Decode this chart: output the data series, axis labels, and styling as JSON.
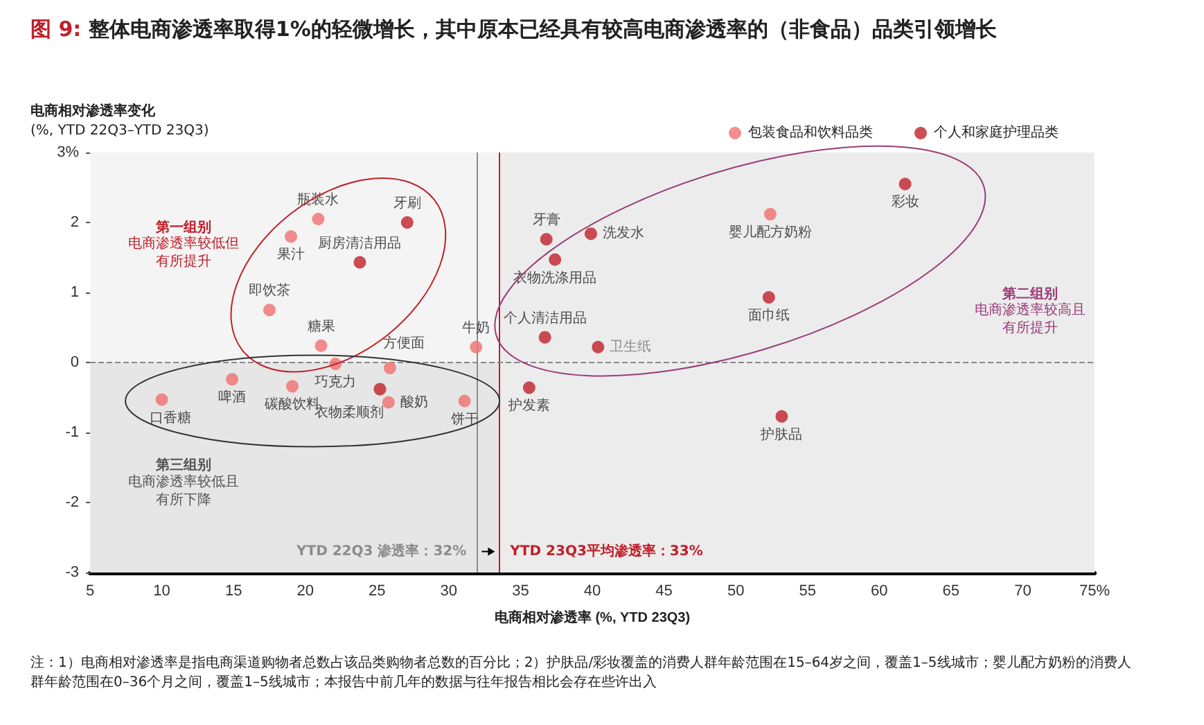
{
  "chart_data": {
    "type": "scatter",
    "title": "图 9: 整体电商渗透率取得1%的轻微增长，其中原本已经具有较高电商渗透率的（非食品）品类引领增长",
    "xlabel": "电商相对渗透率 (%, YTD 23Q3)",
    "ylabel": "电商相对渗透率变化\n(%, YTD 22Q3–YTD 23Q3)",
    "series": [
      {
        "name": "包装食品和饮料品类",
        "color": "#f07070",
        "x": [
          20.9,
          19.0,
          17.5,
          21.1,
          31.9,
          22.1,
          25.9,
          14.9,
          19.1,
          10.0,
          25.8,
          31.1,
          52.4
        ],
        "values": [
          2.05,
          1.8,
          0.75,
          0.24,
          0.22,
          -0.02,
          -0.08,
          -0.24,
          -0.34,
          -0.53,
          -0.57,
          -0.55,
          2.12
        ],
        "value_labels": [
          "瓶装水",
          "果汁",
          "即饮茶",
          "糖果",
          "牛奶",
          "巧克力",
          "方便面",
          "啤酒",
          "碳酸饮料",
          "口香糖",
          "酸奶",
          "饼干",
          "婴儿配方奶粉"
        ]
      },
      {
        "name": "个人和家庭护理品类",
        "color": "#c0202a",
        "x": [
          27.1,
          23.8,
          25.2,
          36.8,
          39.9,
          37.4,
          36.7,
          40.4,
          52.3,
          61.8,
          35.6,
          53.2
        ],
        "values": [
          2.0,
          1.43,
          -0.38,
          1.76,
          1.84,
          1.47,
          0.36,
          0.22,
          0.93,
          2.55,
          -0.36,
          -0.77
        ],
        "value_labels": [
          "牙刷",
          "厨房清洁用品",
          "衣物柔顺剂",
          "牙膏",
          "洗发水",
          "衣物洗涤用品",
          "个人清洁用品",
          "卫生纸",
          "面巾纸",
          "彩妆",
          "护发素",
          "护肤品"
        ]
      }
    ],
    "xlim": [
      5,
      75
    ],
    "xticks": [
      5,
      10,
      15,
      20,
      25,
      30,
      35,
      40,
      45,
      50,
      55,
      60,
      65,
      70,
      {
        "value": 75,
        "label": "75%"
      }
    ],
    "ylim": [
      -3,
      3
    ],
    "yticks": [
      -3,
      -2,
      -1,
      0,
      1,
      2,
      {
        "value": 3,
        "label": "3%"
      }
    ],
    "ref_lines": [
      {
        "axis": "x",
        "value": 32,
        "label": "YTD 22Q3 渗透率：32%",
        "color": "#8c8c8c"
      },
      {
        "axis": "x",
        "value": 33.5,
        "label": "YTD 23Q3平均渗透率：33%",
        "color": "#c0202a"
      },
      {
        "axis": "y",
        "value": 0,
        "label": null,
        "color": "#888888",
        "line_style": "dashed"
      }
    ],
    "bands": [
      {
        "axis": "y",
        "from": -3,
        "to": 0,
        "label": null,
        "color": "#e6e6e6"
      },
      {
        "axis": "x",
        "from": 33.5,
        "to": 75,
        "label": null,
        "color": "#ececec"
      }
    ],
    "annotations": [
      "第一组别",
      "电商渗透率较低但有所提升",
      "第二组别",
      "电商渗透率较高且有所提升",
      "第三组别",
      "电商渗透率较低且有所下降",
      "注：1）电商相对渗透率是指电商渠道购物者总数占该品类购物者总数的百分比；2）护肤品/彩妆覆盖的消费人群年龄范围在15–64岁之间，覆盖1–5线城市；婴儿配方奶粉的消费人群年龄范围在0–36个月之间，覆盖1–5线城市；本报告中前几年的数据与往年报告相比会存在些许出入"
    ],
    "grid": false,
    "legend": "top right",
    "marker": "circle"
  }
}
